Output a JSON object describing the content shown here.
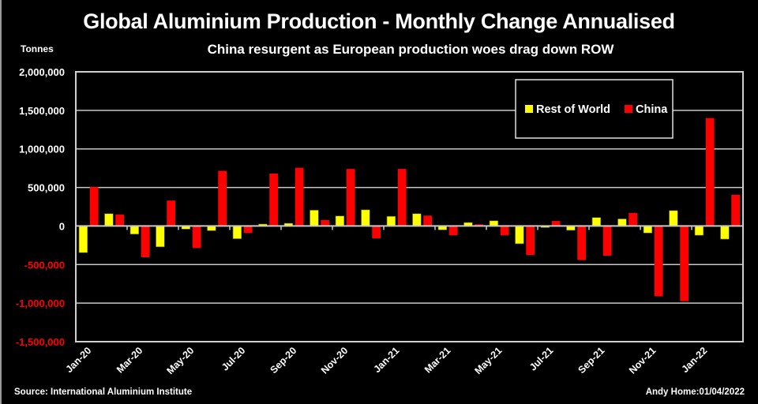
{
  "chart_data": {
    "type": "bar",
    "title": "Global Aluminium Production - Monthly Change Annualised",
    "subtitle": "China resurgent as European production woes drag down ROW",
    "xlabel": "",
    "ylabel": "Tonnes",
    "ylim": [
      -1500000,
      2000000
    ],
    "yticks": [
      2000000,
      1500000,
      1000000,
      500000,
      0,
      -500000,
      -1000000,
      -1500000
    ],
    "ytick_labels": [
      "2,000,000",
      "1,500,000",
      "1,000,000",
      "500,000",
      "0",
      "-500,000",
      "-1,000,000",
      "-1,500,000"
    ],
    "negative_tick_color": "#ff0000",
    "grid": true,
    "legend_position": "top-right",
    "categories": [
      "Jan-20",
      "Feb-20",
      "Mar-20",
      "Apr-20",
      "May-20",
      "Jun-20",
      "Jul-20",
      "Aug-20",
      "Sep-20",
      "Oct-20",
      "Nov-20",
      "Dec-20",
      "Jan-21",
      "Feb-21",
      "Mar-21",
      "Apr-21",
      "May-21",
      "Jun-21",
      "Jul-21",
      "Aug-21",
      "Sep-21",
      "Oct-21",
      "Nov-21",
      "Dec-21",
      "Jan-22",
      "Feb-22"
    ],
    "xtick_labels": [
      "Jan-20",
      "Mar-20",
      "May-20",
      "Jul-20",
      "Sep-20",
      "Nov-20",
      "Jan-21",
      "Mar-21",
      "May-21",
      "Jul-21",
      "Sep-21",
      "Nov-21",
      "Jan-22"
    ],
    "series": [
      {
        "name": "Rest of World",
        "color": "#ffff00",
        "values": [
          -345000,
          160000,
          -105000,
          -270000,
          -40000,
          -60000,
          -165000,
          25000,
          35000,
          205000,
          130000,
          210000,
          125000,
          160000,
          -50000,
          45000,
          68000,
          -230000,
          -20000,
          -55000,
          110000,
          92000,
          -90000,
          200000,
          -120000,
          -170000
        ]
      },
      {
        "name": "China",
        "color": "#ff0000",
        "values": [
          505000,
          150000,
          -405000,
          330000,
          -285000,
          715000,
          -90000,
          680000,
          755000,
          77000,
          740000,
          -160000,
          740000,
          135000,
          -120000,
          22000,
          -120000,
          -375000,
          65000,
          -440000,
          -385000,
          170000,
          -910000,
          -975000,
          1400000,
          405000
        ]
      }
    ]
  },
  "footer": {
    "source": "Source: International Aluminium Institute",
    "credit": "Andy Home:01/04/2022"
  }
}
